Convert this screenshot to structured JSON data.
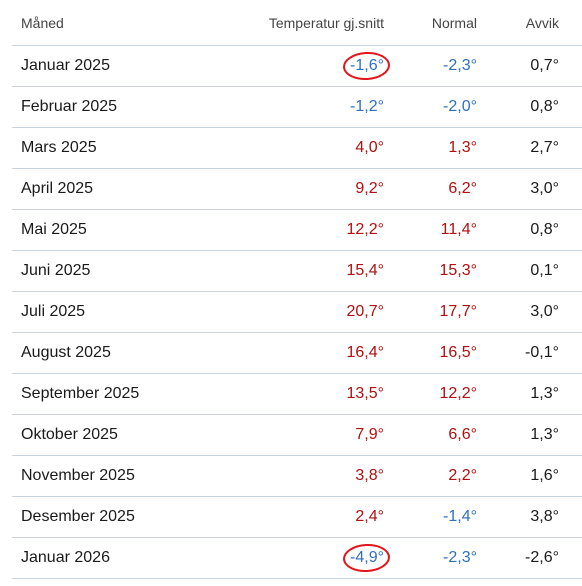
{
  "columns": {
    "month": "Måned",
    "temperature": "Temperatur gj.snitt",
    "normal": "Normal",
    "deviation": "Avvik"
  },
  "colors": {
    "warm": "#b10f0f",
    "cold": "#2f6fbf",
    "annotation_circle": "#e3141b"
  },
  "rows": [
    {
      "month": "Januar 2025",
      "temp": "-1,6°",
      "normal": "-2,3°",
      "deviation": "0,7°",
      "temp_class": "cold",
      "normal_class": "cold",
      "dev_class": "neutral",
      "circled": true
    },
    {
      "month": "Februar 2025",
      "temp": "-1,2°",
      "normal": "-2,0°",
      "deviation": "0,8°",
      "temp_class": "cold",
      "normal_class": "cold",
      "dev_class": "neutral",
      "circled": false
    },
    {
      "month": "Mars 2025",
      "temp": "4,0°",
      "normal": "1,3°",
      "deviation": "2,7°",
      "temp_class": "warm",
      "normal_class": "warm",
      "dev_class": "neutral",
      "circled": false
    },
    {
      "month": "April 2025",
      "temp": "9,2°",
      "normal": "6,2°",
      "deviation": "3,0°",
      "temp_class": "warm",
      "normal_class": "warm",
      "dev_class": "neutral",
      "circled": false
    },
    {
      "month": "Mai 2025",
      "temp": "12,2°",
      "normal": "11,4°",
      "deviation": "0,8°",
      "temp_class": "warm",
      "normal_class": "warm",
      "dev_class": "neutral",
      "circled": false
    },
    {
      "month": "Juni 2025",
      "temp": "15,4°",
      "normal": "15,3°",
      "deviation": "0,1°",
      "temp_class": "warm",
      "normal_class": "warm",
      "dev_class": "neutral",
      "circled": false
    },
    {
      "month": "Juli 2025",
      "temp": "20,7°",
      "normal": "17,7°",
      "deviation": "3,0°",
      "temp_class": "warm",
      "normal_class": "warm",
      "dev_class": "neutral",
      "circled": false
    },
    {
      "month": "August 2025",
      "temp": "16,4°",
      "normal": "16,5°",
      "deviation": "-0,1°",
      "temp_class": "warm",
      "normal_class": "warm",
      "dev_class": "neutral",
      "circled": false
    },
    {
      "month": "September 2025",
      "temp": "13,5°",
      "normal": "12,2°",
      "deviation": "1,3°",
      "temp_class": "warm",
      "normal_class": "warm",
      "dev_class": "neutral",
      "circled": false
    },
    {
      "month": "Oktober 2025",
      "temp": "7,9°",
      "normal": "6,6°",
      "deviation": "1,3°",
      "temp_class": "warm",
      "normal_class": "warm",
      "dev_class": "neutral",
      "circled": false
    },
    {
      "month": "November 2025",
      "temp": "3,8°",
      "normal": "2,2°",
      "deviation": "1,6°",
      "temp_class": "warm",
      "normal_class": "warm",
      "dev_class": "neutral",
      "circled": false
    },
    {
      "month": "Desember 2025",
      "temp": "2,4°",
      "normal": "-1,4°",
      "deviation": "3,8°",
      "temp_class": "warm",
      "normal_class": "cold",
      "dev_class": "neutral",
      "circled": false
    },
    {
      "month": "Januar 2026",
      "temp": "-4,9°",
      "normal": "-2,3°",
      "deviation": "-2,6°",
      "temp_class": "cold",
      "normal_class": "cold",
      "dev_class": "neutral",
      "circled": true
    }
  ]
}
